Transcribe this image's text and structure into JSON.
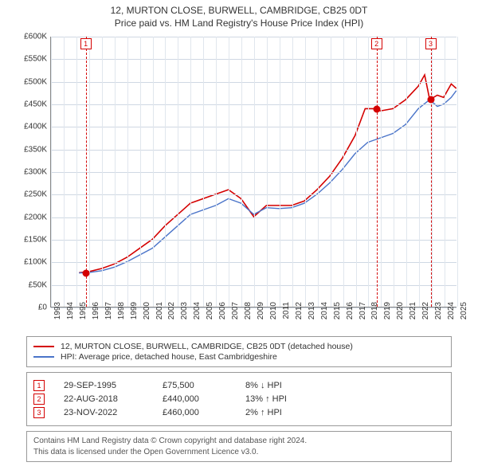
{
  "title": {
    "line1": "12, MURTON CLOSE, BURWELL, CAMBRIDGE, CB25 0DT",
    "line2": "Price paid vs. HM Land Registry's House Price Index (HPI)"
  },
  "chart": {
    "type": "line",
    "background_color": "#ffffff",
    "grid_color_h": "#cfd8e3",
    "grid_color_v": "#e0e6ed",
    "axis_color": "#888888",
    "x": {
      "min": 1993,
      "max": 2025,
      "ticks": [
        1993,
        1994,
        1995,
        1996,
        1997,
        1998,
        1999,
        2000,
        2001,
        2002,
        2003,
        2004,
        2005,
        2006,
        2007,
        2008,
        2009,
        2010,
        2011,
        2012,
        2013,
        2014,
        2015,
        2016,
        2017,
        2018,
        2019,
        2020,
        2021,
        2022,
        2023,
        2024,
        2025
      ]
    },
    "y": {
      "min": 0,
      "max": 600000,
      "ticks": [
        0,
        50000,
        100000,
        150000,
        200000,
        250000,
        300000,
        350000,
        400000,
        450000,
        500000,
        550000,
        600000
      ],
      "tick_labels": [
        "£0",
        "£50K",
        "£100K",
        "£150K",
        "£200K",
        "£250K",
        "£300K",
        "£350K",
        "£400K",
        "£450K",
        "£500K",
        "£550K",
        "£600K"
      ]
    },
    "series": [
      {
        "id": "address",
        "label": "12, MURTON CLOSE, BURWELL, CAMBRIDGE, CB25 0DT (detached house)",
        "color": "#d40000",
        "line_width": 1.6,
        "points": [
          [
            1995.2,
            75500
          ],
          [
            1996,
            78000
          ],
          [
            1997,
            85000
          ],
          [
            1998,
            95000
          ],
          [
            1999,
            110000
          ],
          [
            2000,
            130000
          ],
          [
            2001,
            150000
          ],
          [
            2002,
            180000
          ],
          [
            2003,
            205000
          ],
          [
            2004,
            230000
          ],
          [
            2005,
            240000
          ],
          [
            2006,
            250000
          ],
          [
            2007,
            260000
          ],
          [
            2008,
            240000
          ],
          [
            2009,
            200000
          ],
          [
            2010,
            225000
          ],
          [
            2011,
            225000
          ],
          [
            2012,
            225000
          ],
          [
            2013,
            235000
          ],
          [
            2014,
            260000
          ],
          [
            2015,
            290000
          ],
          [
            2016,
            330000
          ],
          [
            2017,
            380000
          ],
          [
            2017.8,
            440000
          ],
          [
            2018.6,
            440000
          ],
          [
            2019,
            435000
          ],
          [
            2020,
            440000
          ],
          [
            2021,
            460000
          ],
          [
            2022,
            490000
          ],
          [
            2022.5,
            515000
          ],
          [
            2022.9,
            460000
          ],
          [
            2023.5,
            470000
          ],
          [
            2024,
            465000
          ],
          [
            2024.6,
            495000
          ],
          [
            2025,
            485000
          ]
        ]
      },
      {
        "id": "hpi",
        "label": "HPI: Average price, detached house, East Cambridgeshire",
        "color": "#4a74c9",
        "line_width": 1.4,
        "points": [
          [
            1995.2,
            75000
          ],
          [
            1996,
            76000
          ],
          [
            1997,
            80000
          ],
          [
            1998,
            88000
          ],
          [
            1999,
            100000
          ],
          [
            2000,
            115000
          ],
          [
            2001,
            130000
          ],
          [
            2002,
            155000
          ],
          [
            2003,
            180000
          ],
          [
            2004,
            205000
          ],
          [
            2005,
            215000
          ],
          [
            2006,
            225000
          ],
          [
            2007,
            240000
          ],
          [
            2008,
            230000
          ],
          [
            2009,
            205000
          ],
          [
            2010,
            220000
          ],
          [
            2011,
            218000
          ],
          [
            2012,
            220000
          ],
          [
            2013,
            230000
          ],
          [
            2014,
            250000
          ],
          [
            2015,
            275000
          ],
          [
            2016,
            305000
          ],
          [
            2017,
            340000
          ],
          [
            2018,
            365000
          ],
          [
            2019,
            375000
          ],
          [
            2020,
            385000
          ],
          [
            2021,
            405000
          ],
          [
            2022,
            440000
          ],
          [
            2022.9,
            460000
          ],
          [
            2023.5,
            445000
          ],
          [
            2024,
            450000
          ],
          [
            2024.6,
            465000
          ],
          [
            2025,
            480000
          ]
        ]
      }
    ],
    "event_markers": [
      {
        "num": "1",
        "x": 1995.74,
        "y": 75500,
        "dot_color": "#d40000"
      },
      {
        "num": "2",
        "x": 2018.64,
        "y": 440000,
        "dot_color": "#d40000"
      },
      {
        "num": "3",
        "x": 2022.9,
        "y": 460000,
        "dot_color": "#d40000"
      }
    ]
  },
  "legend": {
    "items": [
      {
        "color": "#d40000",
        "label": "12, MURTON CLOSE, BURWELL, CAMBRIDGE, CB25 0DT (detached house)"
      },
      {
        "color": "#4a74c9",
        "label": "HPI: Average price, detached house, East Cambridgeshire"
      }
    ]
  },
  "events": [
    {
      "num": "1",
      "date": "29-SEP-1995",
      "price": "£75,500",
      "delta": "8% ↓ HPI"
    },
    {
      "num": "2",
      "date": "22-AUG-2018",
      "price": "£440,000",
      "delta": "13% ↑ HPI"
    },
    {
      "num": "3",
      "date": "23-NOV-2022",
      "price": "£460,000",
      "delta": "2% ↑ HPI"
    }
  ],
  "footer": {
    "line1": "Contains HM Land Registry data © Crown copyright and database right 2024.",
    "line2": "This data is licensed under the Open Government Licence v3.0."
  }
}
